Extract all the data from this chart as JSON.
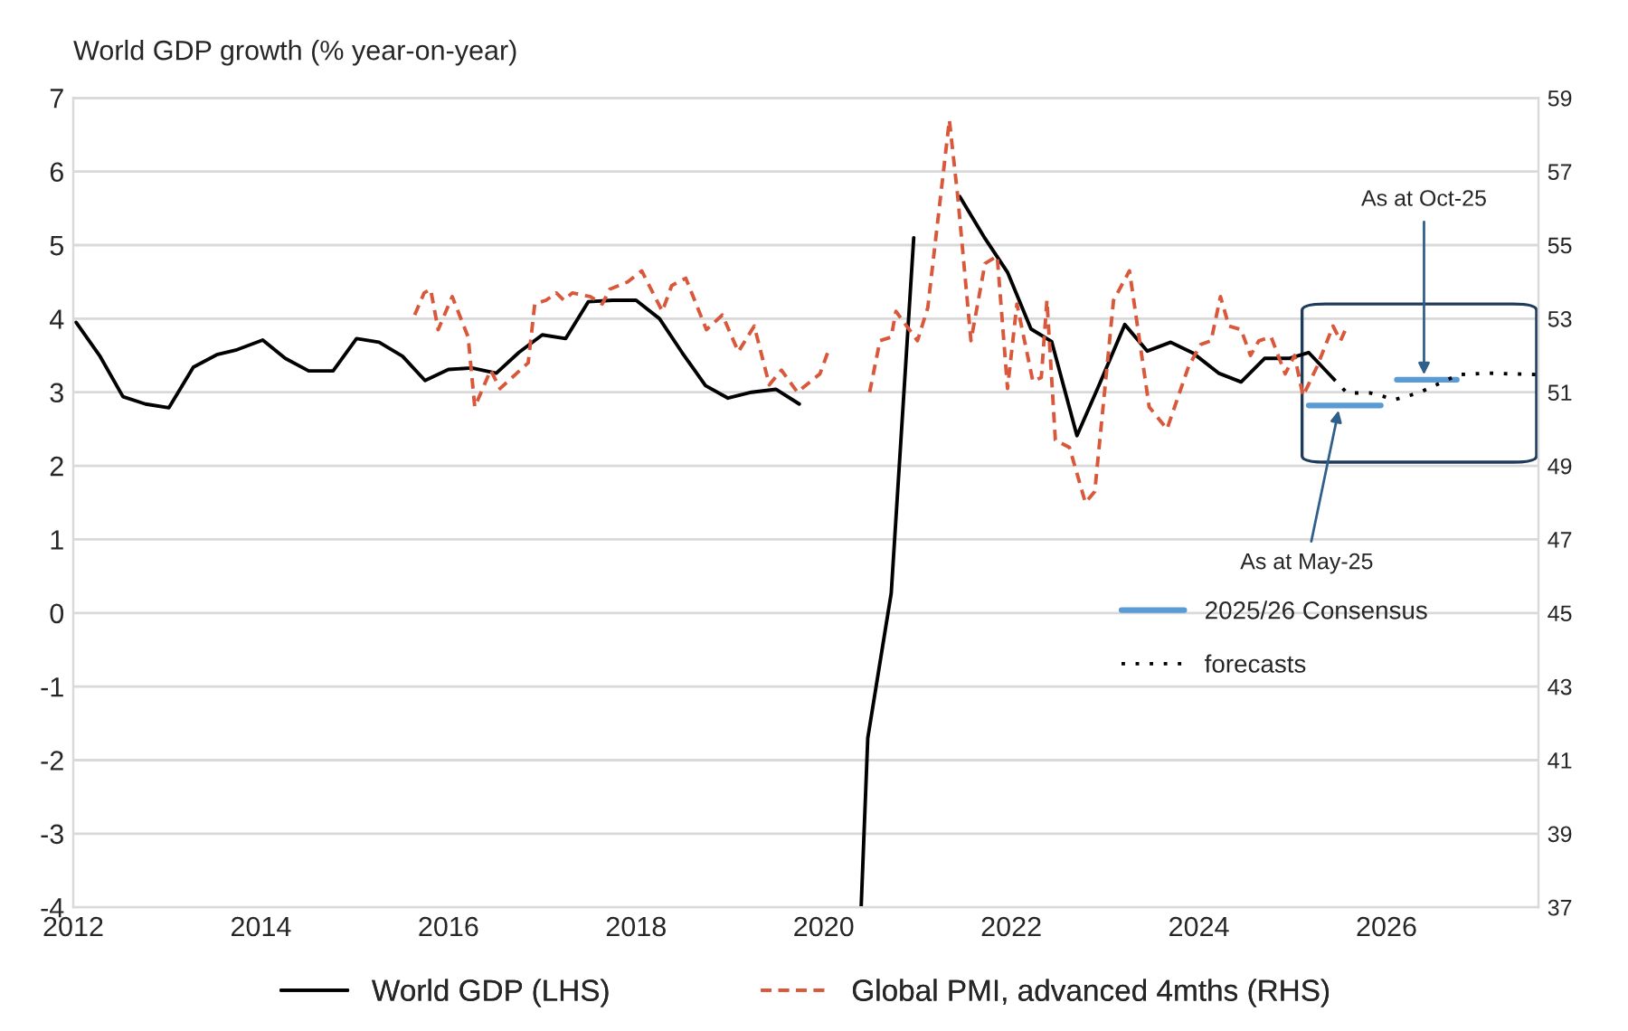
{
  "chart_data": {
    "type": "line",
    "ylabel": "World GDP growth (% year-on-year)",
    "xlim": [
      2012,
      2027.62
    ],
    "xticks": [
      2012,
      2014,
      2016,
      2018,
      2020,
      2022,
      2024,
      2026
    ],
    "ylim": [
      -4,
      7
    ],
    "yticks": [
      -4,
      -3,
      -2,
      -1,
      0,
      1,
      2,
      3,
      4,
      5,
      6,
      7
    ],
    "y2lim": [
      37,
      59
    ],
    "y2ticks": [
      37,
      39,
      41,
      43,
      45,
      47,
      49,
      51,
      53,
      55,
      57,
      59
    ],
    "grid": "y",
    "legend": "bottom",
    "marker": "none",
    "annotations": [
      {
        "text": "As at May-25",
        "x": 2025.5,
        "y": 2.82
      },
      {
        "text": "As at Oct-25",
        "x": 2026.4,
        "y": 3.17
      }
    ],
    "series": [
      {
        "name": "World GDP (LHS)",
        "color": "#000000",
        "line_style": "solid",
        "x": [
          2012.03,
          2012.28,
          2012.53,
          2012.77,
          2013.02,
          2013.28,
          2013.53,
          2013.75,
          2014.02,
          2014.26,
          2014.51,
          2014.77,
          2015.02,
          2015.26,
          2015.51,
          2015.75,
          2016.0,
          2016.25,
          2016.51,
          2016.75,
          2017.0,
          2017.25,
          2017.49,
          2017.75,
          2018.0,
          2018.25,
          2018.49,
          2018.74,
          2018.98,
          2019.23,
          2019.49,
          2019.74,
          2019.98,
          2020.4,
          2020.47,
          2020.72,
          2020.96,
          2021.2,
          2021.45,
          2021.72,
          2021.96,
          2022.21,
          2022.43,
          2022.7,
          2022.94,
          2023.21,
          2023.45,
          2023.7,
          2023.94,
          2024.21,
          2024.45,
          2024.7,
          2024.96,
          2025.17,
          2025.43
        ],
        "values": [
          3.95,
          3.5,
          2.94,
          2.84,
          2.79,
          3.34,
          3.51,
          3.58,
          3.71,
          3.46,
          3.29,
          3.29,
          3.73,
          3.68,
          3.49,
          3.16,
          3.31,
          3.33,
          3.26,
          3.54,
          3.78,
          3.73,
          4.23,
          4.25,
          4.25,
          4.0,
          3.54,
          3.09,
          2.92,
          3.0,
          3.04,
          2.84,
          null,
          -3.98,
          -1.7,
          0.27,
          5.1,
          null,
          5.66,
          5.09,
          4.63,
          3.86,
          3.69,
          2.41,
          3.11,
          3.92,
          3.56,
          3.68,
          3.53,
          3.26,
          3.14,
          3.46,
          3.46,
          3.54,
          3.19
        ]
      },
      {
        "name": "Global PMI, advanced 4mths (RHS)",
        "color": "#d9573a",
        "line_style": "dashed",
        "axis": "y2",
        "x": [
          2015.64,
          2015.74,
          2015.81,
          2015.89,
          2016.04,
          2016.21,
          2016.28,
          2016.45,
          2016.55,
          2016.85,
          2016.92,
          2017.04,
          2017.15,
          2017.23,
          2017.32,
          2017.51,
          2017.64,
          2017.72,
          2017.91,
          2018.06,
          2018.28,
          2018.38,
          2018.53,
          2018.75,
          2018.92,
          2019.09,
          2019.26,
          2019.42,
          2019.55,
          2019.72,
          2019.96,
          2020.06,
          2020.3,
          2020.49,
          2020.6,
          2020.72,
          2020.77,
          2021.0,
          2021.11,
          2021.34,
          2021.43,
          2021.57,
          2021.72,
          2021.85,
          2021.96,
          2022.06,
          2022.23,
          2022.32,
          2022.38,
          2022.47,
          2022.62,
          2022.79,
          2022.89,
          2023.09,
          2023.26,
          2023.47,
          2023.66,
          2023.89,
          2024.02,
          2024.13,
          2024.23,
          2024.32,
          2024.45,
          2024.55,
          2024.64,
          2024.77,
          2024.92,
          2025.02,
          2025.11,
          2025.26,
          2025.43,
          2025.51,
          2025.58
        ],
        "values": [
          53.1,
          53.7,
          53.8,
          52.7,
          53.6,
          52.5,
          50.6,
          51.6,
          51.1,
          51.8,
          53.4,
          53.5,
          53.7,
          53.5,
          53.7,
          53.6,
          53.4,
          53.8,
          54.0,
          54.3,
          53.2,
          53.9,
          54.1,
          52.7,
          53.1,
          52.1,
          52.8,
          51.2,
          51.6,
          51.0,
          51.5,
          52.2,
          null,
          51.0,
          52.4,
          52.5,
          53.2,
          52.4,
          53.3,
          58.4,
          56.3,
          52.4,
          54.5,
          54.7,
          51.1,
          53.4,
          51.3,
          51.4,
          53.5,
          49.7,
          49.5,
          48.0,
          48.3,
          53.5,
          54.3,
          50.6,
          50.0,
          51.7,
          52.3,
          52.4,
          53.6,
          52.8,
          52.7,
          52.0,
          52.4,
          52.5,
          51.5,
          52.0,
          50.9,
          51.7,
          52.8,
          52.4,
          52.8
        ]
      },
      {
        "name": "2025/26 Consensus",
        "color": "#5b9bd5",
        "line_style": "solid",
        "x": [
          2025.17,
          2025.94,
          2025.95,
          2026.11,
          2026.75
        ],
        "values": [
          2.82,
          2.82,
          null,
          3.17,
          3.17
        ]
      },
      {
        "name": "forecasts",
        "color": "#000000",
        "line_style": "dotted",
        "x": [
          2025.43,
          2025.58,
          2025.83,
          2026.09,
          2026.34,
          2026.77,
          2027.09,
          2027.6
        ],
        "values": [
          3.19,
          2.99,
          2.99,
          2.9,
          2.99,
          3.24,
          3.26,
          3.24
        ]
      }
    ]
  }
}
